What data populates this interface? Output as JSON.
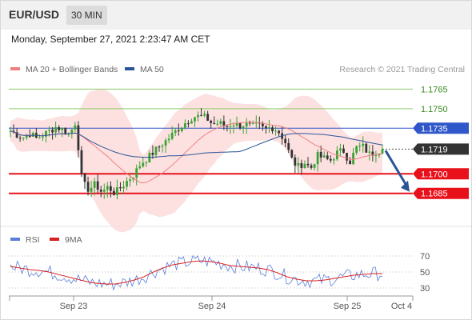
{
  "header": {
    "pair": "EUR/USD",
    "timeframe": "30 MIN",
    "datetime": "Monday, September 27, 2021 2:23:47 AM CET"
  },
  "colors": {
    "ma20": "#f08080",
    "ma50": "#2a5597",
    "band_fill": "#fddcdc",
    "support": "#e8111a",
    "resistance_green": "#8ccc6a",
    "resistance_blue": "#2f57c9",
    "current_box": "#333333",
    "rsi": "#5b7fd8",
    "rsi_ma": "#d92020",
    "arrow": "#2a5597"
  },
  "chart_data": [
    {
      "type": "candlestick",
      "legend": [
        {
          "name": "MA 20 + Bollinger Bands",
          "color": "#f08080"
        },
        {
          "name": "MA 50",
          "color": "#2a5597"
        }
      ],
      "legend_position": "top-left",
      "credit": "Research © 2021 Trading Central",
      "ylim": [
        1.1675,
        1.1772
      ],
      "levels": [
        {
          "value": 1.1765,
          "label": "1.1765",
          "kind": "resistance-green"
        },
        {
          "value": 1.175,
          "label": "1.1750",
          "kind": "resistance-green"
        },
        {
          "value": 1.1735,
          "label": "1.1735",
          "kind": "resistance-blue"
        },
        {
          "value": 1.1719,
          "label": "1.1719",
          "kind": "current"
        },
        {
          "value": 1.17,
          "label": "1.1700",
          "kind": "support"
        },
        {
          "value": 1.1685,
          "label": "1.1685",
          "kind": "support"
        }
      ],
      "close_path": [
        1.1733,
        1.173,
        1.1728,
        1.1731,
        1.1727,
        1.173,
        1.1733,
        1.1736,
        1.1734,
        1.173,
        1.174,
        1.1693,
        1.1688,
        1.1692,
        1.1686,
        1.169,
        1.1685,
        1.169,
        1.1695,
        1.17,
        1.1708,
        1.1712,
        1.1717,
        1.1722,
        1.1726,
        1.1731,
        1.1736,
        1.174,
        1.1744,
        1.1744,
        1.1743,
        1.1738,
        1.1739,
        1.1736,
        1.1739,
        1.1737,
        1.1738,
        1.1736,
        1.1737,
        1.1734,
        1.1736,
        1.1733,
        1.1726,
        1.1712,
        1.1705,
        1.1709,
        1.1704,
        1.1714,
        1.1712,
        1.171,
        1.1716,
        1.1718,
        1.1709,
        1.172,
        1.1721,
        1.1715,
        1.1717,
        1.1719
      ],
      "arrow": {
        "from": 1.1719,
        "to": 1.1685,
        "direction": "down"
      }
    },
    {
      "type": "line",
      "legend": [
        {
          "name": "RSI",
          "color": "#5b7fd8"
        },
        {
          "name": "9MA",
          "color": "#d92020"
        }
      ],
      "ylim": [
        25,
        75
      ],
      "yticks": [
        70,
        50,
        30
      ],
      "x_ticks": [
        "Sep 23",
        "Sep 24",
        "Sep 25",
        "Oct 4"
      ],
      "rsi_ma_path": [
        57,
        55,
        53,
        52,
        50,
        47,
        44,
        41,
        38,
        36,
        35,
        35,
        37,
        40,
        44,
        50,
        55,
        59,
        61,
        63,
        64,
        63,
        61,
        58,
        57,
        56,
        55,
        53,
        49,
        44,
        41,
        39,
        39,
        40,
        42,
        44,
        46,
        47,
        48,
        48
      ],
      "rsi_amplitude": 9
    }
  ]
}
